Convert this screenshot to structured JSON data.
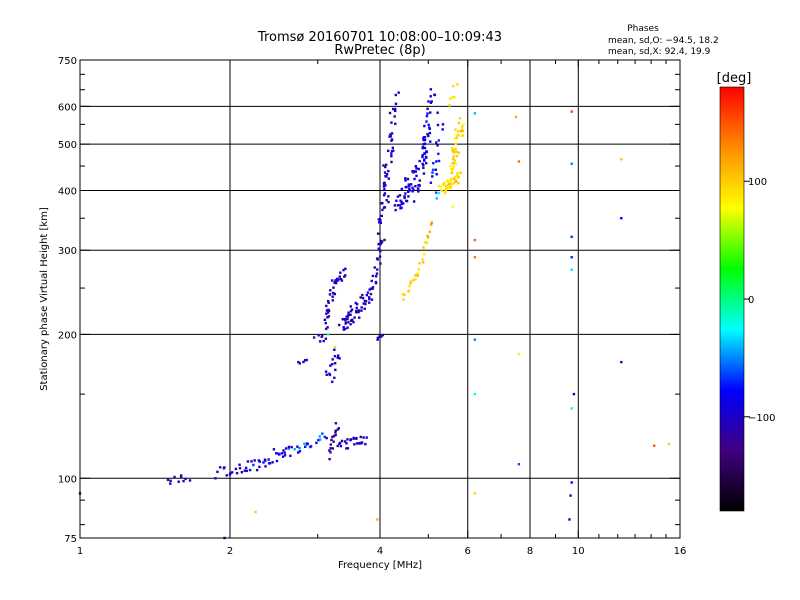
{
  "chart_data": {
    "type": "scatter",
    "title": "Tromsø 20160701 10:08:00–10:09:43",
    "subtitle": "RwPretec (8p)",
    "xlabel": "Frequency [MHz]",
    "ylabel": "Stationary phase Virtual Height [km]",
    "x_scale": "log",
    "y_scale": "log",
    "xlim": [
      1,
      16
    ],
    "ylim": [
      75,
      750
    ],
    "x_ticks": [
      1,
      2,
      4,
      6,
      8,
      10,
      16
    ],
    "x_tick_labels": [
      "1",
      "2",
      "4",
      "6",
      "8",
      "10",
      "16"
    ],
    "x_grid": [
      2,
      4,
      6,
      8,
      10
    ],
    "y_ticks": [
      75,
      100,
      200,
      300,
      400,
      500,
      600,
      750
    ],
    "y_tick_labels": [
      "75",
      "100",
      "200",
      "300",
      "400",
      "500",
      "600",
      "750"
    ],
    "y_grid": [
      100,
      200,
      300,
      400,
      500,
      600
    ],
    "grid": true,
    "phase_header": "Phases",
    "phase_stats": [
      "mean, sd,O: −94.5, 18.2",
      "mean, sd,X:  92.4, 19.9"
    ],
    "colorbar": {
      "label": "[deg]",
      "range": [
        -180,
        180
      ],
      "ticks": [
        100,
        0,
        -100
      ],
      "tick_labels": [
        "100",
        "0",
        "−100"
      ],
      "colors": [
        "#ff0000",
        "#ff8c00",
        "#ffff00",
        "#00ff00",
        "#00ffff",
        "#0000ff",
        "#400080",
        "#000000"
      ]
    },
    "series": [
      {
        "name": "O-mode",
        "mean_phase": -94.5,
        "sd_phase": 18.2,
        "segments": [
          {
            "from": [
              1.5,
              98
            ],
            "to": [
              1.65,
              100
            ],
            "n": 10,
            "jitter": 0.02,
            "phase": [
              -120,
              -95
            ]
          },
          {
            "from": [
              1.9,
              103
            ],
            "to": [
              2.15,
              105
            ],
            "n": 14,
            "jitter": 0.02,
            "phase": [
              -115,
              -90
            ]
          },
          {
            "from": [
              2.15,
              105
            ],
            "to": [
              2.6,
              113
            ],
            "n": 28,
            "jitter": 0.025,
            "phase": [
              -115,
              -60
            ]
          },
          {
            "from": [
              2.6,
              113
            ],
            "to": [
              3.1,
              122
            ],
            "n": 24,
            "jitter": 0.025,
            "phase": [
              -110,
              -40
            ]
          },
          {
            "from": [
              2.75,
              175
            ],
            "to": [
              2.85,
              176
            ],
            "n": 5,
            "jitter": 0.01,
            "phase": [
              -115,
              -100
            ]
          },
          {
            "from": [
              3.05,
              195
            ],
            "to": [
              3.25,
              255
            ],
            "n": 30,
            "jitter": 0.03,
            "phase": [
              -120,
              -90
            ]
          },
          {
            "from": [
              3.25,
              255
            ],
            "to": [
              3.4,
              270
            ],
            "n": 14,
            "jitter": 0.02,
            "phase": [
              -120,
              -95
            ]
          },
          {
            "from": [
              3.15,
              160
            ],
            "to": [
              3.3,
              185
            ],
            "n": 16,
            "jitter": 0.03,
            "phase": [
              -120,
              -90
            ]
          },
          {
            "from": [
              3.15,
              112
            ],
            "to": [
              3.3,
              130
            ],
            "n": 16,
            "jitter": 0.02,
            "phase": [
              -130,
              -110
            ]
          },
          {
            "from": [
              3.3,
              117
            ],
            "to": [
              3.75,
              120
            ],
            "n": 26,
            "jitter": 0.02,
            "phase": [
              -120,
              -90
            ]
          },
          {
            "from": [
              3.35,
              210
            ],
            "to": [
              3.6,
              225
            ],
            "n": 32,
            "jitter": 0.035,
            "phase": [
              -120,
              -85
            ]
          },
          {
            "from": [
              3.6,
              225
            ],
            "to": [
              3.85,
              245
            ],
            "n": 22,
            "jitter": 0.03,
            "phase": [
              -115,
              -90
            ]
          },
          {
            "from": [
              3.85,
              245
            ],
            "to": [
              4.05,
              320
            ],
            "n": 24,
            "jitter": 0.025,
            "phase": [
              -115,
              -90
            ]
          },
          {
            "from": [
              3.95,
              193
            ],
            "to": [
              4.05,
              200
            ],
            "n": 6,
            "jitter": 0.01,
            "phase": [
              -120,
              -90
            ]
          },
          {
            "from": [
              4.0,
              330
            ],
            "to": [
              4.1,
              450
            ],
            "n": 22,
            "jitter": 0.025,
            "phase": [
              -115,
              -85
            ]
          },
          {
            "from": [
              4.1,
              380
            ],
            "to": [
              4.3,
              630
            ],
            "n": 36,
            "jitter": 0.035,
            "phase": [
              -120,
              -85
            ]
          },
          {
            "from": [
              4.3,
              360
            ],
            "to": [
              4.7,
              430
            ],
            "n": 38,
            "jitter": 0.04,
            "phase": [
              -115,
              -80
            ]
          },
          {
            "from": [
              4.7,
              390
            ],
            "to": [
              5.0,
              520
            ],
            "n": 38,
            "jitter": 0.04,
            "phase": [
              -110,
              -75
            ]
          },
          {
            "from": [
              4.9,
              480
            ],
            "to": [
              5.1,
              640
            ],
            "n": 24,
            "jitter": 0.03,
            "phase": [
              -105,
              -70
            ]
          },
          {
            "from": [
              5.1,
              400
            ],
            "to": [
              5.3,
              560
            ],
            "n": 18,
            "jitter": 0.035,
            "phase": [
              -100,
              -60
            ]
          }
        ]
      },
      {
        "name": "X-mode",
        "mean_phase": 92.4,
        "sd_phase": 19.9,
        "segments": [
          {
            "from": [
              4.45,
              240
            ],
            "to": [
              4.75,
              265
            ],
            "n": 12,
            "jitter": 0.02,
            "phase": [
              85,
              110
            ]
          },
          {
            "from": [
              4.75,
              265
            ],
            "to": [
              5.0,
              320
            ],
            "n": 10,
            "jitter": 0.02,
            "phase": [
              80,
              110
            ]
          },
          {
            "from": [
              5.0,
              320
            ],
            "to": [
              5.1,
              345
            ],
            "n": 4,
            "jitter": 0.01,
            "phase": [
              110,
              140
            ]
          },
          {
            "from": [
              5.3,
              400
            ],
            "to": [
              5.8,
              425
            ],
            "n": 40,
            "jitter": 0.025,
            "phase": [
              80,
              110
            ]
          },
          {
            "from": [
              5.5,
              430
            ],
            "to": [
              5.85,
              560
            ],
            "n": 40,
            "jitter": 0.035,
            "phase": [
              75,
              110
            ]
          },
          {
            "from": [
              5.5,
              600
            ],
            "to": [
              5.7,
              660
            ],
            "n": 6,
            "jitter": 0.02,
            "phase": [
              85,
              100
            ]
          }
        ]
      }
    ],
    "scattered_points": [
      {
        "x": 1.0,
        "y": 93,
        "phase": -110
      },
      {
        "x": 1.87,
        "y": 100,
        "phase": -105
      },
      {
        "x": 1.95,
        "y": 75,
        "phase": -100
      },
      {
        "x": 2.25,
        "y": 85,
        "phase": 100
      },
      {
        "x": 2.45,
        "y": 115,
        "phase": -100
      },
      {
        "x": 2.95,
        "y": 197,
        "phase": -105
      },
      {
        "x": 3.15,
        "y": 200,
        "phase": -10
      },
      {
        "x": 3.25,
        "y": 188,
        "phase": 95
      },
      {
        "x": 3.95,
        "y": 82,
        "phase": 110
      },
      {
        "x": 5.2,
        "y": 385,
        "phase": -40
      },
      {
        "x": 5.25,
        "y": 395,
        "phase": -20
      },
      {
        "x": 5.6,
        "y": 370,
        "phase": 80
      },
      {
        "x": 6.2,
        "y": 580,
        "phase": -40
      },
      {
        "x": 6.2,
        "y": 315,
        "phase": 145
      },
      {
        "x": 6.2,
        "y": 290,
        "phase": 135
      },
      {
        "x": 6.2,
        "y": 195,
        "phase": -50
      },
      {
        "x": 6.2,
        "y": 150,
        "phase": -20
      },
      {
        "x": 6.2,
        "y": 93,
        "phase": 100
      },
      {
        "x": 7.5,
        "y": 570,
        "phase": 115
      },
      {
        "x": 7.6,
        "y": 460,
        "phase": 140
      },
      {
        "x": 7.6,
        "y": 182,
        "phase": 85
      },
      {
        "x": 7.6,
        "y": 107,
        "phase": -60
      },
      {
        "x": 9.7,
        "y": 585,
        "phase": 155
      },
      {
        "x": 9.7,
        "y": 455,
        "phase": -50
      },
      {
        "x": 9.7,
        "y": 320,
        "phase": -65
      },
      {
        "x": 9.7,
        "y": 290,
        "phase": -70
      },
      {
        "x": 9.7,
        "y": 273,
        "phase": -30
      },
      {
        "x": 9.7,
        "y": 140,
        "phase": -20
      },
      {
        "x": 9.8,
        "y": 150,
        "phase": -90
      },
      {
        "x": 9.7,
        "y": 98,
        "phase": -80
      },
      {
        "x": 9.65,
        "y": 92,
        "phase": -110
      },
      {
        "x": 9.6,
        "y": 82,
        "phase": -90
      },
      {
        "x": 12.2,
        "y": 465,
        "phase": 105
      },
      {
        "x": 12.2,
        "y": 350,
        "phase": -80
      },
      {
        "x": 12.2,
        "y": 175,
        "phase": -110
      },
      {
        "x": 14.2,
        "y": 117,
        "phase": 150
      },
      {
        "x": 15.2,
        "y": 118,
        "phase": 60
      }
    ]
  }
}
